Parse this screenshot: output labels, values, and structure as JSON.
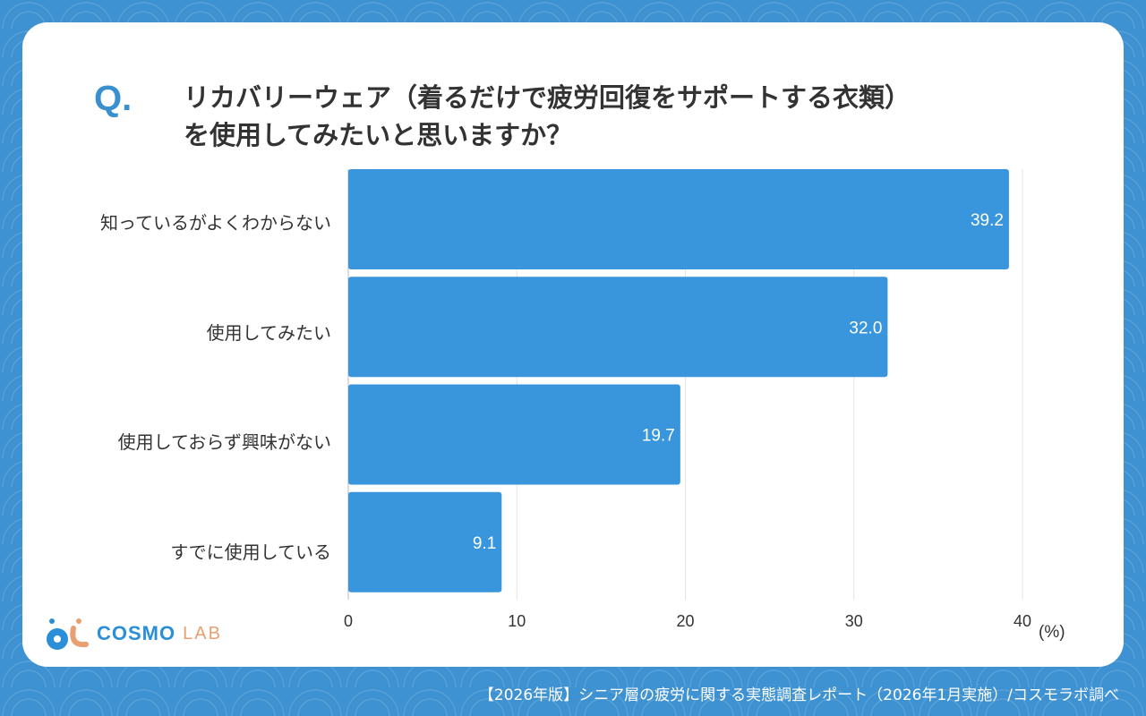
{
  "question_mark": "Q.",
  "title_lines": [
    "リカバリーウェア（着るだけで疲労回復をサポートする衣類）",
    "を使用してみたいと思いますか？"
  ],
  "logo": {
    "main": "COSMO",
    "sub": "LAB"
  },
  "footer": "【2026年版】シニア層の疲労に関する実態調査レポート（2026年1月実施）/コスモラボ調べ",
  "chart_data": {
    "type": "bar",
    "orientation": "horizontal",
    "categories": [
      "知っているがよくわからない",
      "使用してみたい",
      "使用しておらず興味がない",
      "すでに使用している"
    ],
    "values": [
      39.2,
      32.0,
      19.7,
      9.1
    ],
    "value_labels": [
      "39.2",
      "32.0",
      "19.7",
      "9.1"
    ],
    "xlim": [
      0,
      40
    ],
    "xticks": [
      "0",
      "10",
      "20",
      "30",
      "40"
    ],
    "xunit": "(%)",
    "grid": true,
    "bar_color": "#3a96dc"
  }
}
